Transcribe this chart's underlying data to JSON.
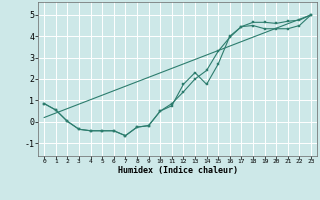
{
  "xlabel": "Humidex (Indice chaleur)",
  "background_color": "#cde8e8",
  "line_color": "#2d7d6e",
  "grid_color": "#ffffff",
  "xlim": [
    -0.5,
    23.5
  ],
  "ylim": [
    -1.6,
    5.6
  ],
  "yticks": [
    -1,
    0,
    1,
    2,
    3,
    4,
    5
  ],
  "xticks": [
    0,
    1,
    2,
    3,
    4,
    5,
    6,
    7,
    8,
    9,
    10,
    11,
    12,
    13,
    14,
    15,
    16,
    17,
    18,
    19,
    20,
    21,
    22,
    23
  ],
  "xtick_labels": [
    "0",
    "1",
    "2",
    "3",
    "4",
    "5",
    "6",
    "7",
    "8",
    "9",
    "10",
    "11",
    "12",
    "13",
    "14",
    "15",
    "16",
    "17",
    "18",
    "19",
    "20",
    "21",
    "22",
    "23"
  ],
  "line1_x": [
    0,
    1,
    2,
    3,
    4,
    5,
    6,
    7,
    8,
    9,
    10,
    11,
    12,
    13,
    14,
    15,
    16,
    17,
    18,
    19,
    20,
    21,
    22,
    23
  ],
  "line1_y": [
    0.85,
    0.55,
    0.02,
    -0.35,
    -0.42,
    -0.42,
    -0.42,
    -0.65,
    -0.25,
    -0.18,
    0.5,
    0.75,
    1.75,
    2.3,
    1.75,
    2.7,
    4.0,
    4.45,
    4.5,
    4.35,
    4.35,
    4.35,
    4.5,
    5.0
  ],
  "line2_x": [
    0,
    1,
    2,
    3,
    4,
    5,
    6,
    7,
    8,
    9,
    10,
    11,
    12,
    13,
    14,
    15,
    16,
    17,
    18,
    19,
    20,
    21,
    22,
    23
  ],
  "line2_y": [
    0.85,
    0.55,
    0.02,
    -0.35,
    -0.42,
    -0.42,
    -0.42,
    -0.65,
    -0.25,
    -0.18,
    0.5,
    0.85,
    1.4,
    2.0,
    2.4,
    3.3,
    3.95,
    4.45,
    4.65,
    4.65,
    4.6,
    4.7,
    4.75,
    5.0
  ],
  "line3_x": [
    0,
    23
  ],
  "line3_y": [
    0.2,
    5.0
  ],
  "figsize": [
    3.2,
    2.0
  ],
  "dpi": 100
}
